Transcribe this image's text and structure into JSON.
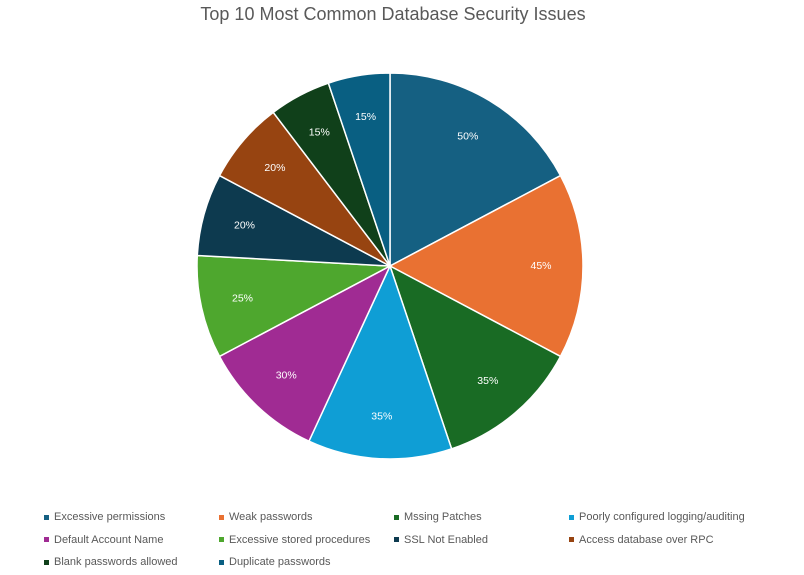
{
  "chart_data": {
    "type": "pie",
    "title": "Top 10 Most Common Database Security Issues",
    "value_format": "percent",
    "legend_position": "bottom",
    "slices": [
      {
        "label": "Excessive permissions",
        "value": 50,
        "display": "50%",
        "color": "#156082"
      },
      {
        "label": "Weak passwords",
        "value": 45,
        "display": "45%",
        "color": "#E97132"
      },
      {
        "label": "Mssing Patches",
        "value": 35,
        "display": "35%",
        "color": "#196B24"
      },
      {
        "label": "Poorly configured logging/auditing",
        "value": 35,
        "display": "35%",
        "color": "#0F9ED5"
      },
      {
        "label": "Default Account Name",
        "value": 30,
        "display": "30%",
        "color": "#A02B93"
      },
      {
        "label": "Excessive stored procedures",
        "value": 25,
        "display": "25%",
        "color": "#4EA72E"
      },
      {
        "label": "SSL Not Enabled",
        "value": 20,
        "display": "20%",
        "color": "#0D3A4F"
      },
      {
        "label": "Access database over RPC",
        "value": 20,
        "display": "20%",
        "color": "#974411"
      },
      {
        "label": "Blank passwords allowed",
        "value": 15,
        "display": "15%",
        "color": "#10401A"
      },
      {
        "label": "Duplicate passwords",
        "value": 15,
        "display": "15%",
        "color": "#095F82"
      }
    ]
  }
}
